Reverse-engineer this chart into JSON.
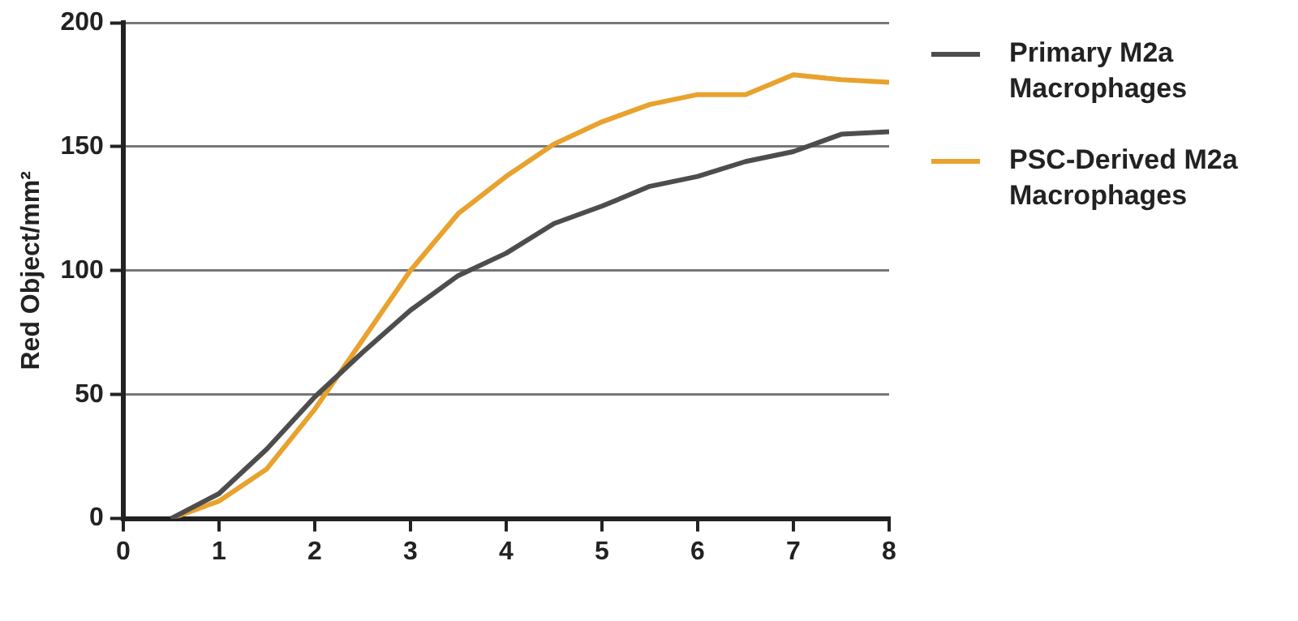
{
  "chart_data": {
    "type": "line",
    "ylabel": "Red Object/mm²",
    "x": [
      0.5,
      1,
      1.5,
      2,
      2.5,
      3,
      3.5,
      4,
      4.5,
      5,
      5.5,
      6,
      6.5,
      7,
      7.5,
      8
    ],
    "series": [
      {
        "name": "Primary M2a Macrophages",
        "color": "#4d4d4d",
        "values": [
          0,
          10,
          28,
          49,
          67,
          84,
          98,
          107,
          119,
          126,
          134,
          138,
          144,
          148,
          155,
          156
        ]
      },
      {
        "name": "PSC-Derived M2a Macrophages",
        "color": "#e8a22d",
        "values": [
          0,
          7,
          20,
          44,
          72,
          100,
          123,
          138,
          151,
          160,
          167,
          171,
          171,
          179,
          177,
          176
        ]
      }
    ],
    "xlim": [
      0,
      8
    ],
    "xticks": [
      0,
      1,
      2,
      3,
      4,
      5,
      6,
      7,
      8
    ],
    "ylim": [
      0,
      200
    ],
    "yticks": [
      0,
      50,
      100,
      150,
      200
    ],
    "grid": "y",
    "legend": "right",
    "marker": "none",
    "line_style": "solid"
  }
}
